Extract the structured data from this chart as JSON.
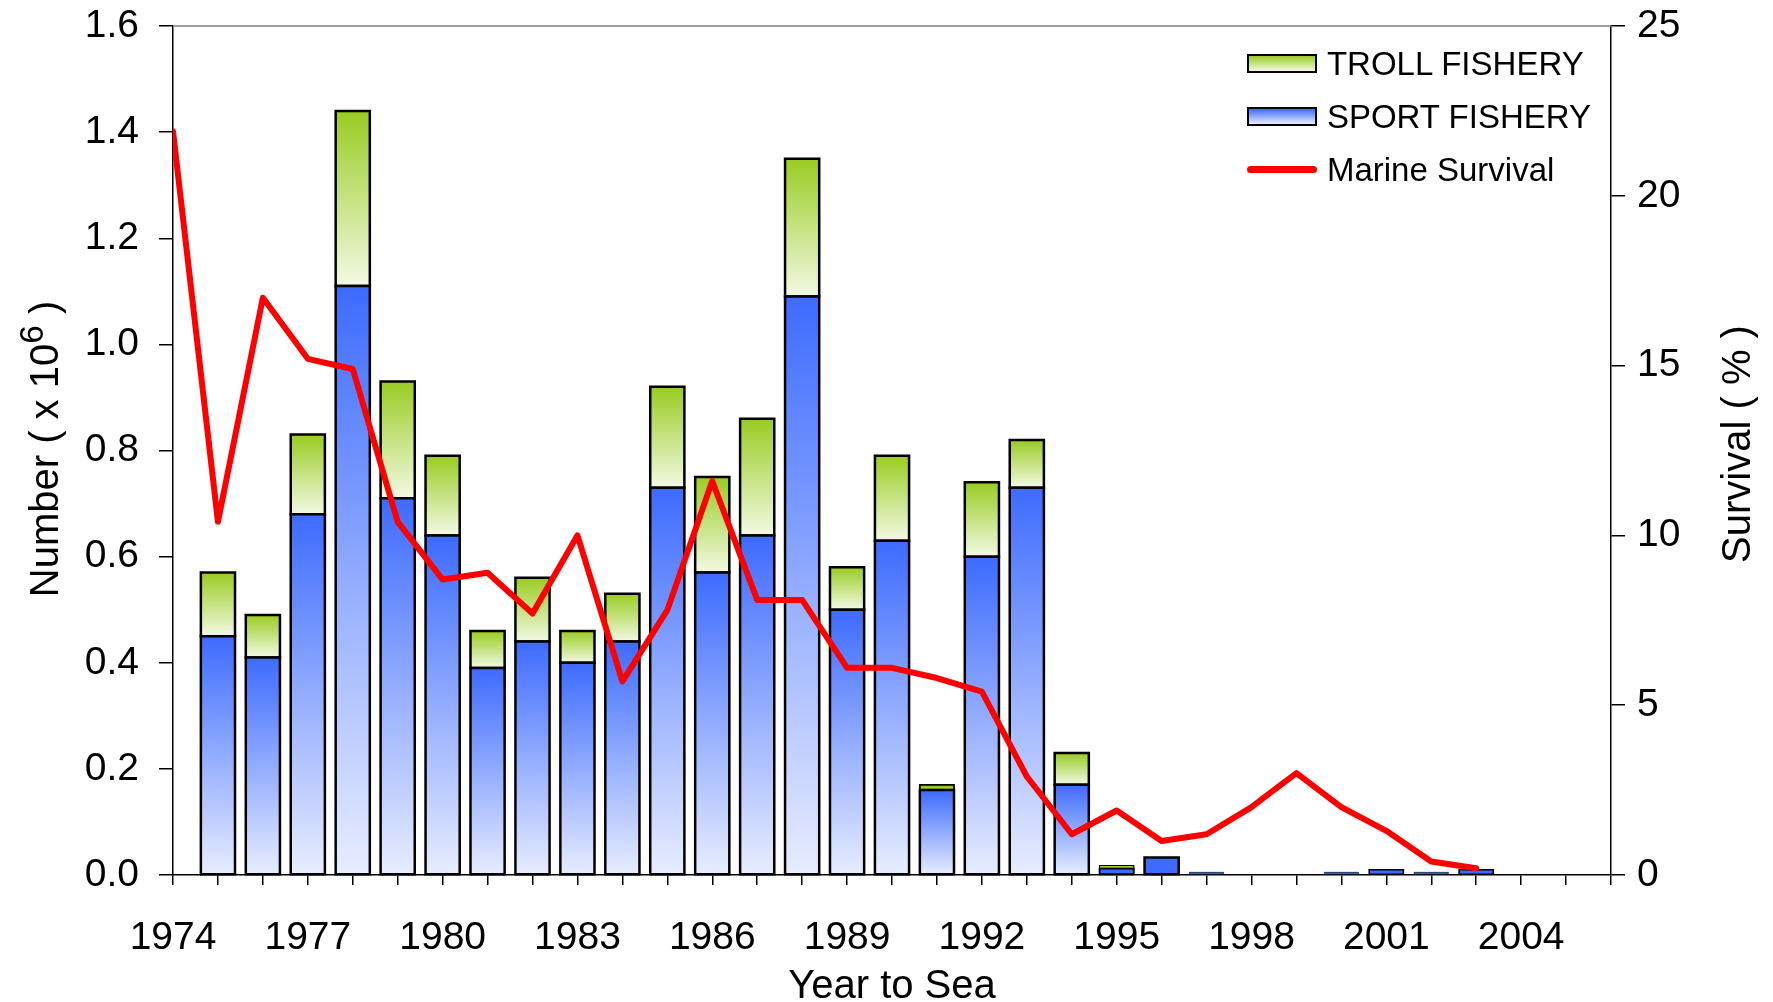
{
  "chart_data": {
    "type": "bar",
    "stacked": true,
    "xlabel": "Year to Sea",
    "ylabel": "Number ( x 10$^{6}$ )",
    "y2label": "Survival ( % )",
    "legend": "top right",
    "x": [
      1974,
      1975,
      1976,
      1977,
      1978,
      1979,
      1980,
      1981,
      1982,
      1983,
      1984,
      1985,
      1986,
      1987,
      1988,
      1989,
      1990,
      1991,
      1992,
      1993,
      1994,
      1995,
      1996,
      1997,
      1998,
      1999,
      2000,
      2001,
      2002,
      2003
    ],
    "xlim": [
      1974,
      2006
    ],
    "xticks": [
      1974,
      {
        "value": 1975,
        "label": null
      },
      {
        "value": 1976,
        "label": null
      },
      1977,
      {
        "value": 1978,
        "label": null
      },
      {
        "value": 1979,
        "label": null
      },
      1980,
      {
        "value": 1981,
        "label": null
      },
      {
        "value": 1982,
        "label": null
      },
      1983,
      {
        "value": 1984,
        "label": null
      },
      {
        "value": 1985,
        "label": null
      },
      1986,
      {
        "value": 1987,
        "label": null
      },
      {
        "value": 1988,
        "label": null
      },
      1989,
      {
        "value": 1990,
        "label": null
      },
      {
        "value": 1991,
        "label": null
      },
      1992,
      {
        "value": 1993,
        "label": null
      },
      {
        "value": 1994,
        "label": null
      },
      1995,
      {
        "value": 1996,
        "label": null
      },
      {
        "value": 1997,
        "label": null
      },
      1998,
      {
        "value": 1999,
        "label": null
      },
      {
        "value": 2000,
        "label": null
      },
      2001,
      {
        "value": 2002,
        "label": null
      },
      {
        "value": 2003,
        "label": null
      },
      2004,
      {
        "value": 2005,
        "label": null
      },
      {
        "value": 2006,
        "label": null
      }
    ],
    "ylim": [
      0,
      1.6
    ],
    "yticks": [
      {
        "value": 0,
        "label": "0.0"
      },
      0.2,
      0.4,
      0.6,
      0.8,
      {
        "value": 1,
        "label": "1.0"
      },
      1.2,
      1.4,
      1.6
    ],
    "y2lim": [
      0,
      25
    ],
    "y2ticks": [
      0,
      5,
      10,
      15,
      20,
      25
    ],
    "series": [
      {
        "name": "SPORT FISHERY",
        "color": "#3d6bff",
        "values": [
          null,
          0.45,
          0.41,
          0.68,
          1.11,
          0.71,
          0.64,
          0.39,
          0.44,
          0.4,
          0.44,
          0.73,
          0.57,
          0.64,
          1.09,
          0.5,
          0.63,
          0.16,
          0.6,
          0.73,
          0.17,
          0.012,
          0.033,
          0.005,
          null,
          null,
          0.005,
          0.01,
          0.005,
          0.01
        ]
      },
      {
        "name": "TROLL FISHERY",
        "color": "#99cc22",
        "values": [
          null,
          0.12,
          0.08,
          0.15,
          0.33,
          0.22,
          0.15,
          0.07,
          0.12,
          0.06,
          0.09,
          0.19,
          0.18,
          0.22,
          0.26,
          0.08,
          0.16,
          0.01,
          0.14,
          0.09,
          0.06,
          0.006,
          null,
          null,
          null,
          null,
          null,
          null,
          null,
          null
        ]
      },
      {
        "name": "Marine Survival",
        "type": "line",
        "axis": "y2",
        "color": "#ff0000",
        "values": [
          21.9,
          10.4,
          17.0,
          15.2,
          14.9,
          10.4,
          8.7,
          8.9,
          7.7,
          10.0,
          5.7,
          7.8,
          11.6,
          8.1,
          8.1,
          6.1,
          6.1,
          5.8,
          5.4,
          2.9,
          1.2,
          1.9,
          1.0,
          1.2,
          2.0,
          3.0,
          2.0,
          1.3,
          0.4,
          0.2
        ]
      }
    ]
  }
}
